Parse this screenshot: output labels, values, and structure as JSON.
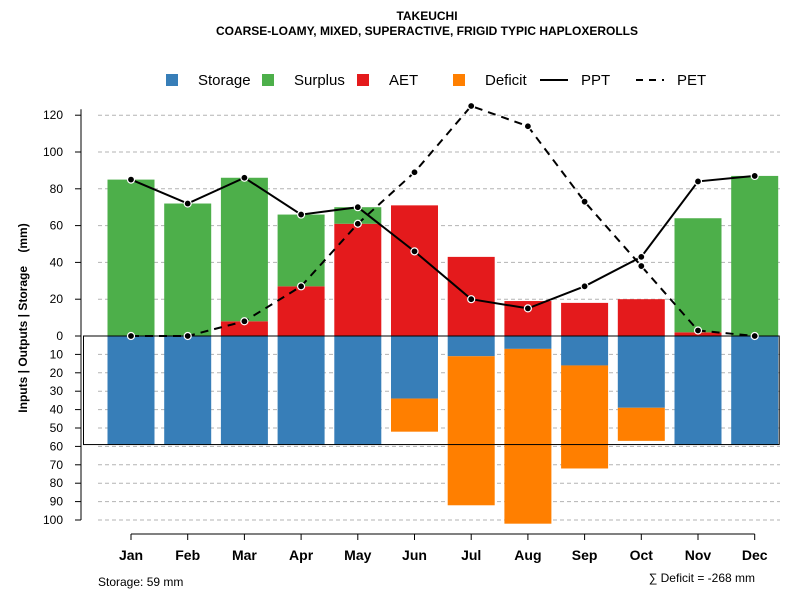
{
  "chart_data": {
    "type": "bar",
    "title": "TAKEUCHI",
    "subtitle": "COARSE-LOAMY, MIXED, SUPERACTIVE, FRIGID TYPIC HAPLOXEROLLS",
    "ylabel": "Inputs | Outputs | Storage    (mm)",
    "categories": [
      "Jan",
      "Feb",
      "Mar",
      "Apr",
      "May",
      "Jun",
      "Jul",
      "Aug",
      "Sep",
      "Oct",
      "Nov",
      "Dec"
    ],
    "upper_ticks": [
      "0",
      "20",
      "40",
      "60",
      "80",
      "100",
      "120"
    ],
    "lower_ticks": [
      "10",
      "20",
      "30",
      "40",
      "50",
      "60",
      "70",
      "80",
      "90",
      "100"
    ],
    "ylim_upper": [
      0,
      130
    ],
    "ylim_lower": [
      0,
      100
    ],
    "series": [
      {
        "name": "Storage",
        "color": "#377EB8",
        "values": [
          59,
          59,
          59,
          59,
          59,
          34,
          11,
          7,
          16,
          39,
          59,
          59
        ]
      },
      {
        "name": "Surplus",
        "color": "#4DAF4A",
        "values": [
          85,
          72,
          78,
          39,
          9,
          0,
          0,
          0,
          0,
          0,
          62,
          87
        ]
      },
      {
        "name": "AET",
        "color": "#E41A1C",
        "values": [
          0,
          0,
          8,
          27,
          61,
          71,
          43,
          19,
          18,
          20,
          2,
          0
        ]
      },
      {
        "name": "Deficit",
        "color": "#FF7F00",
        "values": [
          0,
          0,
          0,
          0,
          0,
          18,
          81,
          95,
          56,
          18,
          0,
          0
        ]
      }
    ],
    "lines": [
      {
        "name": "PPT",
        "style": "solid",
        "values": [
          85,
          72,
          86,
          66,
          70,
          46,
          20,
          15,
          27,
          43,
          84,
          87
        ]
      },
      {
        "name": "PET",
        "style": "dashed",
        "values": [
          0,
          0,
          8,
          27,
          61,
          89,
          125,
          114,
          73,
          38,
          3,
          0
        ]
      }
    ],
    "storage_capacity": 59,
    "footer_left": "Storage: 59 mm",
    "footer_right": "∑ Deficit = -268 mm",
    "grid": true,
    "legend_position": "top"
  }
}
